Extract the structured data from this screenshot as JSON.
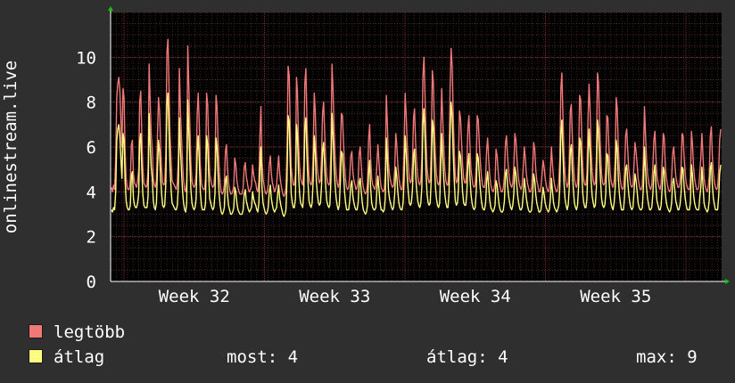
{
  "chart_data": {
    "type": "line",
    "ylabel": "onlinestream.live",
    "ylim": [
      0,
      12
    ],
    "y_ticks": [
      0,
      2,
      4,
      6,
      8,
      10
    ],
    "x_labels": [
      "Week 32",
      "Week 33",
      "Week 34",
      "Week 35"
    ],
    "grid": true,
    "legend_placement": "bottom-left",
    "background": "#000000",
    "grid_color": "#5a2a2a",
    "axis_arrow_color": "#00cc00",
    "series": [
      {
        "name": "legtöbb",
        "color": "#f07878",
        "values": [
          4.2,
          4.0,
          4.3,
          4.1,
          5.5,
          8.2,
          8.8,
          9.1,
          8.5,
          7.2,
          6.0,
          8.6,
          8.2,
          5.9,
          4.6,
          4.2,
          4.1,
          4.1,
          4.5,
          6.1,
          6.3,
          4.8,
          4.4,
          4.3,
          4.2,
          4.5,
          5.0,
          8.0,
          8.5,
          6.5,
          5.1,
          4.4,
          4.3,
          4.2,
          4.3,
          5.0,
          9.7,
          8.1,
          6.6,
          5.9,
          4.6,
          4.3,
          4.2,
          4.5,
          6.4,
          8.2,
          7.6,
          6.0,
          5.0,
          4.4,
          4.3,
          4.4,
          5.7,
          10.2,
          10.8,
          8.8,
          6.6,
          5.4,
          4.5,
          4.4,
          4.3,
          4.2,
          4.1,
          4.4,
          5.6,
          9.5,
          7.6,
          6.4,
          5.2,
          4.5,
          4.1,
          4.0,
          4.5,
          10.5,
          8.7,
          6.9,
          5.3,
          4.5,
          4.3,
          4.2,
          4.3,
          4.8,
          7.5,
          8.4,
          7.0,
          5.2,
          4.4,
          4.2,
          4.1,
          4.1,
          4.6,
          8.4,
          7.9,
          6.1,
          4.8,
          4.5,
          4.3,
          4.2,
          4.3,
          5.0,
          8.3,
          7.8,
          6.2,
          5.1,
          4.4,
          4.0,
          3.9,
          4.0,
          4.3,
          5.8,
          6.1,
          5.0,
          4.4,
          4.1,
          3.9,
          3.9,
          4.0,
          4.3,
          5.5,
          5.2,
          4.5,
          4.2,
          4.0,
          3.9,
          3.9,
          3.9,
          4.2,
          5.1,
          5.3,
          4.7,
          4.4,
          4.1,
          4.0,
          4.1,
          4.3,
          5.2,
          4.8,
          4.5,
          4.4,
          4.1,
          4.0,
          4.5,
          6.5,
          7.8,
          5.4,
          4.6,
          4.3,
          4.0,
          3.9,
          4.0,
          4.3,
          5.2,
          5.6,
          4.8,
          4.4,
          4.2,
          4.0,
          4.1,
          4.3,
          5.0,
          5.6,
          4.8,
          4.4,
          4.1,
          3.9,
          3.8,
          3.9,
          4.2,
          5.9,
          9.6,
          9.2,
          7.0,
          5.1,
          4.6,
          4.3,
          4.3,
          4.8,
          9.1,
          8.4,
          6.2,
          5.1,
          4.6,
          4.4,
          4.3,
          5.2,
          8.8,
          9.5,
          7.2,
          5.8,
          4.7,
          4.4,
          4.3,
          4.5,
          5.8,
          8.4,
          7.6,
          5.8,
          5.0,
          4.6,
          4.4,
          4.5,
          5.6,
          7.5,
          8.0,
          6.6,
          5.4,
          4.7,
          4.4,
          4.3,
          4.4,
          5.9,
          9.7,
          8.5,
          6.8,
          5.6,
          4.8,
          4.4,
          4.2,
          4.4,
          5.8,
          7.5,
          7.4,
          6.2,
          5.2,
          4.5,
          4.2,
          4.1,
          4.2,
          4.7,
          5.6,
          5.8,
          4.9,
          4.5,
          4.3,
          4.1,
          4.2,
          4.5,
          5.7,
          6.0,
          5.2,
          4.5,
          4.2,
          4.0,
          3.9,
          4.0,
          4.4,
          6.3,
          7.0,
          5.5,
          4.6,
          4.3,
          4.2,
          4.1,
          4.3,
          5.3,
          6.1,
          5.3,
          4.6,
          4.2,
          4.1,
          4.0,
          4.1,
          4.8,
          8.3,
          7.0,
          5.3,
          4.8,
          4.5,
          4.3,
          4.2,
          4.3,
          5.0,
          6.6,
          6.1,
          5.2,
          4.6,
          4.3,
          4.1,
          4.1,
          4.5,
          6.0,
          8.4,
          7.4,
          6.1,
          5.2,
          4.6,
          4.4,
          4.5,
          5.3,
          7.3,
          7.7,
          6.2,
          5.3,
          4.7,
          4.4,
          4.3,
          4.5,
          5.5,
          9.1,
          10.0,
          8.3,
          6.4,
          5.1,
          4.6,
          4.4,
          4.5,
          6.0,
          9.4,
          8.9,
          6.9,
          5.5,
          4.8,
          4.4,
          4.3,
          4.5,
          6.5,
          8.6,
          7.2,
          6.0,
          5.0,
          4.5,
          4.3,
          4.3,
          5.0,
          8.6,
          10.4,
          9.6,
          7.4,
          5.8,
          4.7,
          4.4,
          4.5,
          5.3,
          7.6,
          7.3,
          6.2,
          5.2,
          4.6,
          4.4,
          4.4,
          5.0,
          6.8,
          7.4,
          6.1,
          5.0,
          4.6,
          4.3,
          4.2,
          4.3,
          5.2,
          7.4,
          7.2,
          6.1,
          5.3,
          4.7,
          4.3,
          4.2,
          4.2,
          4.6,
          5.9,
          6.4,
          5.4,
          4.7,
          4.3,
          4.1,
          4.0,
          4.1,
          4.4,
          5.9,
          5.6,
          4.9,
          4.4,
          4.2,
          4.0,
          4.0,
          4.2,
          4.7,
          6.2,
          6.5,
          5.6,
          4.9,
          4.5,
          4.3,
          4.2,
          4.4,
          5.1,
          6.6,
          6.3,
          5.4,
          4.8,
          4.4,
          4.2,
          4.1,
          4.3,
          5.1,
          6.0,
          5.5,
          4.8,
          4.4,
          4.2,
          4.0,
          4.0,
          4.2,
          5.0,
          6.2,
          5.9,
          5.0,
          4.5,
          4.3,
          4.0,
          4.0,
          4.2,
          4.8,
          5.4,
          5.1,
          4.6,
          4.3,
          4.1,
          4.0,
          4.2,
          4.8,
          6.0,
          5.2,
          4.6,
          4.3,
          4.1,
          4.0,
          4.1,
          4.4,
          5.5,
          8.6,
          9.3,
          7.4,
          5.7,
          4.8,
          4.4,
          4.2,
          4.4,
          5.3,
          7.6,
          7.9,
          6.5,
          5.3,
          4.6,
          4.3,
          4.2,
          4.4,
          5.6,
          8.3,
          8.1,
          6.4,
          5.1,
          4.5,
          4.3,
          4.3,
          4.8,
          7.2,
          8.8,
          7.6,
          5.9,
          4.9,
          4.5,
          4.3,
          4.4,
          5.5,
          9.3,
          8.9,
          7.2,
          5.8,
          4.8,
          4.4,
          4.3,
          4.4,
          5.1,
          7.4,
          7.3,
          6.0,
          5.0,
          4.5,
          4.3,
          4.2,
          4.5,
          5.5,
          8.2,
          7.7,
          6.0,
          5.0,
          4.5,
          4.2,
          4.1,
          4.2,
          4.9,
          6.5,
          6.8,
          5.9,
          5.0,
          4.6,
          4.3,
          4.2,
          4.3,
          5.2,
          6.2,
          5.8,
          5.2,
          4.6,
          4.3,
          4.1,
          4.1,
          4.3,
          5.5,
          7.8,
          6.5,
          5.5,
          4.8,
          4.4,
          4.2,
          4.1,
          4.3,
          5.1,
          6.3,
          6.7,
          5.5,
          4.7,
          4.4,
          4.2,
          4.1,
          4.4,
          5.4,
          6.6,
          6.4,
          5.1,
          4.6,
          4.3,
          4.1,
          4.0,
          4.1,
          4.6,
          5.7,
          6.0,
          5.3,
          4.7,
          4.4,
          4.2,
          4.2,
          4.4,
          5.1,
          6.6,
          6.5,
          5.5,
          4.8,
          4.4,
          4.2,
          4.1,
          4.1,
          4.5,
          6.7,
          6.1,
          5.1,
          4.6,
          4.3,
          4.1,
          4.1,
          4.2,
          4.9,
          5.5,
          6.6,
          5.6,
          4.6,
          4.3,
          4.1,
          4.0,
          4.2,
          4.7,
          6.5,
          6.9,
          5.6,
          4.8,
          4.4,
          4.2,
          4.1,
          4.2,
          4.9,
          6.3,
          6.8
        ]
      },
      {
        "name": "átlag",
        "color": "#ffff80",
        "values": [
          3.2,
          3.1,
          3.3,
          3.2,
          4.0,
          6.3,
          6.8,
          7.0,
          6.5,
          5.5,
          4.6,
          6.6,
          6.3,
          4.6,
          3.6,
          3.3,
          3.2,
          3.2,
          3.4,
          4.7,
          4.9,
          3.7,
          3.4,
          3.3,
          3.3,
          3.5,
          3.9,
          6.2,
          6.6,
          5.0,
          3.9,
          3.4,
          3.3,
          3.3,
          3.3,
          3.8,
          7.5,
          6.2,
          5.1,
          4.6,
          3.6,
          3.3,
          3.2,
          3.5,
          5.0,
          6.3,
          5.8,
          4.6,
          3.9,
          3.4,
          3.3,
          3.4,
          4.4,
          7.9,
          8.4,
          6.8,
          5.1,
          4.1,
          3.5,
          3.4,
          3.3,
          3.2,
          3.2,
          3.4,
          4.3,
          7.3,
          5.9,
          4.9,
          4.0,
          3.5,
          3.2,
          3.1,
          3.5,
          8.1,
          6.7,
          5.3,
          4.1,
          3.5,
          3.3,
          3.2,
          3.3,
          3.7,
          5.8,
          6.5,
          5.4,
          4.0,
          3.4,
          3.2,
          3.2,
          3.2,
          3.5,
          6.5,
          6.1,
          4.7,
          3.7,
          3.5,
          3.3,
          3.2,
          3.3,
          3.9,
          6.4,
          6.0,
          4.8,
          3.9,
          3.4,
          3.1,
          3.0,
          3.1,
          3.3,
          4.5,
          4.7,
          3.9,
          3.4,
          3.2,
          3.0,
          3.0,
          3.1,
          3.3,
          4.2,
          4.0,
          3.5,
          3.2,
          3.1,
          3.0,
          3.0,
          3.0,
          3.2,
          3.9,
          4.1,
          3.6,
          3.4,
          3.2,
          3.1,
          3.2,
          3.3,
          4.0,
          3.7,
          3.5,
          3.4,
          3.2,
          3.1,
          3.5,
          5.0,
          6.0,
          4.2,
          3.5,
          3.3,
          3.1,
          3.0,
          3.1,
          3.3,
          4.0,
          4.3,
          3.7,
          3.4,
          3.2,
          3.1,
          3.2,
          3.3,
          3.9,
          4.3,
          3.7,
          3.4,
          3.2,
          3.0,
          2.9,
          3.0,
          3.2,
          4.6,
          7.4,
          7.1,
          5.4,
          3.9,
          3.5,
          3.3,
          3.3,
          3.7,
          7.0,
          6.5,
          4.8,
          3.9,
          3.5,
          3.4,
          3.3,
          4.0,
          6.8,
          7.3,
          5.6,
          4.5,
          3.6,
          3.4,
          3.3,
          3.5,
          4.5,
          6.5,
          5.8,
          4.5,
          3.9,
          3.5,
          3.4,
          3.5,
          4.3,
          5.8,
          6.2,
          5.1,
          4.2,
          3.6,
          3.4,
          3.3,
          3.4,
          4.5,
          7.5,
          6.5,
          5.2,
          4.3,
          3.7,
          3.4,
          3.2,
          3.4,
          4.5,
          5.8,
          5.7,
          4.8,
          4.0,
          3.5,
          3.2,
          3.2,
          3.2,
          3.6,
          4.3,
          4.5,
          3.8,
          3.5,
          3.3,
          3.2,
          3.2,
          3.5,
          4.4,
          4.6,
          4.0,
          3.5,
          3.2,
          3.1,
          3.0,
          3.1,
          3.4,
          4.8,
          5.4,
          4.2,
          3.5,
          3.3,
          3.2,
          3.2,
          3.3,
          4.1,
          4.7,
          4.1,
          3.5,
          3.2,
          3.2,
          3.1,
          3.2,
          3.7,
          6.4,
          5.4,
          4.1,
          3.7,
          3.5,
          3.3,
          3.2,
          3.3,
          3.9,
          5.1,
          4.7,
          4.0,
          3.5,
          3.3,
          3.2,
          3.2,
          3.5,
          4.6,
          6.5,
          5.7,
          4.7,
          4.0,
          3.5,
          3.4,
          3.5,
          4.1,
          5.6,
          5.9,
          4.8,
          4.1,
          3.6,
          3.4,
          3.3,
          3.5,
          4.2,
          7.0,
          7.7,
          6.4,
          4.9,
          3.9,
          3.5,
          3.4,
          3.5,
          4.6,
          7.2,
          6.9,
          5.3,
          4.2,
          3.7,
          3.4,
          3.3,
          3.5,
          5.0,
          6.6,
          5.5,
          4.6,
          3.9,
          3.5,
          3.3,
          3.3,
          3.9,
          6.6,
          8.0,
          7.4,
          5.7,
          4.5,
          3.6,
          3.4,
          3.5,
          4.1,
          5.8,
          5.6,
          4.8,
          4.0,
          3.5,
          3.4,
          3.4,
          3.9,
          5.2,
          5.7,
          4.7,
          3.9,
          3.5,
          3.3,
          3.2,
          3.3,
          4.0,
          5.7,
          5.5,
          4.7,
          4.1,
          3.6,
          3.3,
          3.2,
          3.2,
          3.5,
          4.5,
          4.9,
          4.2,
          3.6,
          3.3,
          3.2,
          3.1,
          3.2,
          3.4,
          4.5,
          4.3,
          3.8,
          3.4,
          3.2,
          3.1,
          3.1,
          3.2,
          3.6,
          4.8,
          5.0,
          4.3,
          3.8,
          3.5,
          3.3,
          3.2,
          3.4,
          3.9,
          5.1,
          4.8,
          4.2,
          3.7,
          3.4,
          3.2,
          3.2,
          3.3,
          3.9,
          4.6,
          4.2,
          3.7,
          3.4,
          3.2,
          3.1,
          3.1,
          3.2,
          3.8,
          4.8,
          4.5,
          3.9,
          3.5,
          3.3,
          3.1,
          3.1,
          3.2,
          3.7,
          4.2,
          3.9,
          3.5,
          3.3,
          3.2,
          3.1,
          3.2,
          3.7,
          4.6,
          4.0,
          3.5,
          3.3,
          3.2,
          3.1,
          3.2,
          3.4,
          4.2,
          6.6,
          7.2,
          5.7,
          4.4,
          3.7,
          3.4,
          3.2,
          3.4,
          4.1,
          5.8,
          6.1,
          5.0,
          4.1,
          3.5,
          3.3,
          3.2,
          3.4,
          4.3,
          6.4,
          6.2,
          4.9,
          3.9,
          3.5,
          3.3,
          3.3,
          3.7,
          5.5,
          6.8,
          5.8,
          4.5,
          3.8,
          3.5,
          3.3,
          3.4,
          4.2,
          7.2,
          6.8,
          5.5,
          4.5,
          3.7,
          3.4,
          3.3,
          3.4,
          3.9,
          5.7,
          5.6,
          4.6,
          3.9,
          3.5,
          3.3,
          3.2,
          3.5,
          4.2,
          6.3,
          5.9,
          4.6,
          3.9,
          3.5,
          3.2,
          3.2,
          3.2,
          3.8,
          5.0,
          5.2,
          4.5,
          3.9,
          3.5,
          3.3,
          3.2,
          3.3,
          4.0,
          4.8,
          4.5,
          4.0,
          3.5,
          3.3,
          3.2,
          3.2,
          3.3,
          4.2,
          6.0,
          5.0,
          4.2,
          3.7,
          3.4,
          3.2,
          3.2,
          3.3,
          3.9,
          4.8,
          5.2,
          4.2,
          3.6,
          3.4,
          3.2,
          3.2,
          3.4,
          4.2,
          5.1,
          4.9,
          3.9,
          3.5,
          3.3,
          3.2,
          3.1,
          3.2,
          3.5,
          4.4,
          4.6,
          4.1,
          3.6,
          3.4,
          3.2,
          3.2,
          3.4,
          3.9,
          5.1,
          5.0,
          4.2,
          3.7,
          3.4,
          3.2,
          3.2,
          3.2,
          3.5,
          5.2,
          4.7,
          3.9,
          3.5,
          3.3,
          3.2,
          3.2,
          3.2,
          3.8,
          4.2,
          5.1,
          4.3,
          3.5,
          3.3,
          3.2,
          3.1,
          3.2,
          3.6,
          5.0,
          5.3,
          4.3,
          3.7,
          3.4,
          3.2,
          3.2,
          3.2,
          3.8,
          4.8,
          5.2
        ]
      }
    ]
  },
  "legend": [
    {
      "label": "legtöbb",
      "color": "#f07878"
    },
    {
      "label": "átlag",
      "color": "#ffff80"
    }
  ],
  "stats": {
    "most": "most: 4",
    "atlag": "átlag: 4",
    "max": "max: 9"
  }
}
